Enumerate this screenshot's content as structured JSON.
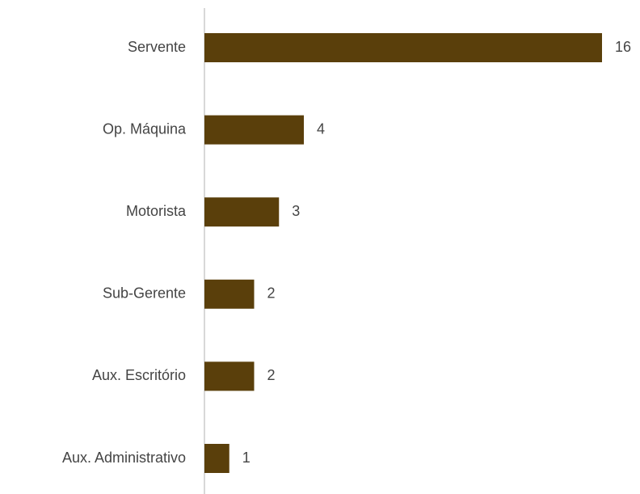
{
  "chart_data": {
    "type": "bar",
    "orientation": "horizontal",
    "categories": [
      "Servente",
      "Op. Máquina",
      "Motorista",
      "Sub-Gerente",
      "Aux. Escritório",
      "Aux. Administrativo"
    ],
    "values": [
      16,
      4,
      3,
      2,
      2,
      1
    ],
    "color": "#5a3f0b"
  }
}
